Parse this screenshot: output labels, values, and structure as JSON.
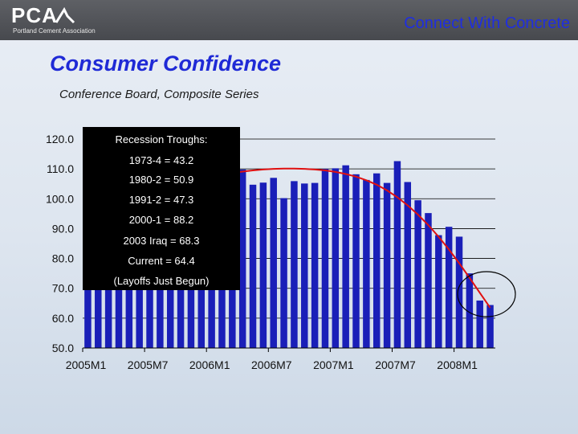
{
  "header": {
    "logo_text": "PCA",
    "logo_subtext": "Portland Cement Association",
    "tagline": "Connect With Concrete"
  },
  "title": "Consumer Confidence",
  "subtitle": "Conference Board, Composite Series",
  "colors": {
    "bar": "#1a1fb8",
    "trend": "#e01010",
    "accent": "#1f2ad6",
    "header": "#4f5156"
  },
  "annotation": {
    "lines": [
      "Recession Troughs:",
      "1973-4 = 43.2",
      "1980-2 = 50.9",
      "1991-2 = 47.3",
      "2000-1 = 88.2",
      "2003 Iraq = 68.3",
      "Current  = 64.4",
      "(Layoffs Just Begun)"
    ]
  },
  "chart_data": {
    "type": "bar",
    "title": "Consumer Confidence",
    "subtitle": "Conference Board, Composite Series",
    "ylim": [
      50,
      120
    ],
    "yticks": [
      "50.0",
      "60.0",
      "70.0",
      "80.0",
      "90.0",
      "100.0",
      "110.0",
      "120.0"
    ],
    "ytick_values": [
      50,
      60,
      70,
      80,
      90,
      100,
      110,
      120
    ],
    "xtick_labels": [
      "2005M1",
      "2005M7",
      "2006M1",
      "2006M7",
      "2007M1",
      "2007M7",
      "2008M1"
    ],
    "xtick_indices": [
      0,
      6,
      12,
      18,
      24,
      30,
      36
    ],
    "grid": true,
    "categories": [
      "2005M1",
      "2005M2",
      "2005M3",
      "2005M4",
      "2005M5",
      "2005M6",
      "2005M7",
      "2005M8",
      "2005M9",
      "2005M10",
      "2005M11",
      "2005M12",
      "2006M1",
      "2006M2",
      "2006M3",
      "2006M4",
      "2006M5",
      "2006M6",
      "2006M7",
      "2006M8",
      "2006M9",
      "2006M10",
      "2006M11",
      "2006M12",
      "2007M1",
      "2007M2",
      "2007M3",
      "2007M4",
      "2007M5",
      "2007M6",
      "2007M7",
      "2007M8",
      "2007M9",
      "2007M10",
      "2007M11",
      "2007M12",
      "2008M1",
      "2008M2",
      "2008M3",
      "2008M4"
    ],
    "values": [
      105.1,
      104.4,
      103.0,
      97.5,
      103.1,
      106.2,
      103.6,
      105.5,
      87.5,
      85.2,
      98.3,
      103.8,
      106.8,
      102.7,
      107.5,
      109.8,
      104.7,
      105.4,
      107.0,
      100.2,
      105.9,
      105.1,
      105.3,
      110.0,
      110.2,
      111.2,
      108.2,
      106.3,
      108.5,
      105.3,
      112.6,
      105.6,
      99.5,
      95.2,
      87.8,
      90.6,
      87.3,
      75.0,
      65.9,
      64.4
    ],
    "trend": [
      96.0,
      97.2,
      98.4,
      99.6,
      100.7,
      101.8,
      102.8,
      103.8,
      104.7,
      105.5,
      106.3,
      107.0,
      107.6,
      108.2,
      108.7,
      109.1,
      109.5,
      109.8,
      110.0,
      110.1,
      110.1,
      110.0,
      109.8,
      109.5,
      109.0,
      108.3,
      107.4,
      106.2,
      104.7,
      102.8,
      100.5,
      97.8,
      94.7,
      91.2,
      87.3,
      83.0,
      78.4,
      73.5,
      68.5,
      63.5
    ]
  }
}
